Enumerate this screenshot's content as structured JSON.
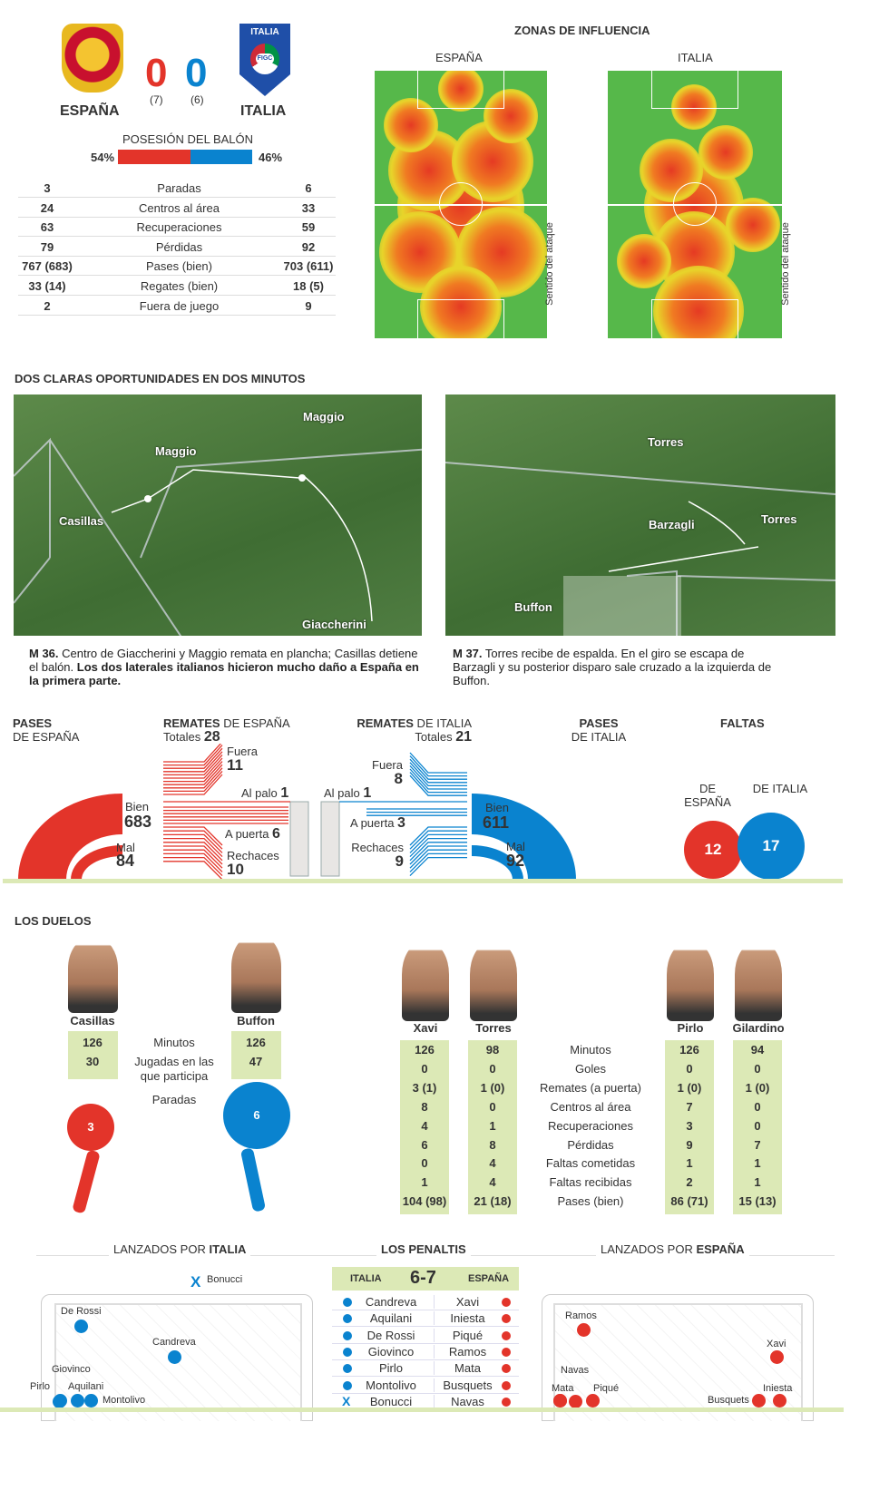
{
  "match": {
    "home": "ESPAÑA",
    "away": "ITALIA",
    "home_score": "0",
    "away_score": "0",
    "home_pen": "(7)",
    "away_pen": "(6)",
    "home_color": "#e3342a",
    "away_color": "#0a83cf",
    "italy_badge_text": "ITALIA",
    "italy_badge_figc": "FIGC"
  },
  "possession": {
    "title": "POSESIÓN DEL BALÓN",
    "home": "54%",
    "away": "46%",
    "home_value": 54,
    "away_value": 46
  },
  "stats": [
    [
      "3",
      "Paradas",
      "6"
    ],
    [
      "24",
      "Centros al área",
      "33"
    ],
    [
      "63",
      "Recuperaciones",
      "59"
    ],
    [
      "79",
      "Pérdidas",
      "92"
    ],
    [
      "767 (683)",
      "Pases (bien)",
      "703 (611)"
    ],
    [
      "33 (14)",
      "Regates (bien)",
      "18 (5)"
    ],
    [
      "2",
      "Fuera de juego",
      "9"
    ]
  ],
  "zones": {
    "title": "ZONAS DE INFLUENCIA",
    "home": "ESPAÑA",
    "away": "ITALIA",
    "direction": "Sentido del ataque"
  },
  "chances": {
    "title": "DOS CLARAS OPORTUNIDADES EN DOS MINUTOS",
    "photo1": {
      "labels": [
        "Maggio",
        "Maggio",
        "Casillas",
        "Giaccherini"
      ]
    },
    "photo2": {
      "labels": [
        "Torres",
        "Torres",
        "Barzagli",
        "Buffon"
      ]
    },
    "caption1": {
      "minute": "M 36.",
      "text": " Centro de Giaccherini y Maggio remata en plancha; Casillas detiene el balón. ",
      "bold": "Los dos laterales italianos hicieron mucho daño a España en la primera parte."
    },
    "caption2": {
      "minute": "M 37.",
      "text": " Torres recibe de espalda. En el giro se escapa de Barzagli y su posterior disparo sale cruzado a la izquierda de Buffon."
    }
  },
  "passes_home": {
    "title": "PASES",
    "sub": "DE ESPAÑA",
    "bien_label": "Bien",
    "bien": "683",
    "mal_label": "Mal",
    "mal": "84"
  },
  "passes_away": {
    "title": "PASES",
    "sub": "DE ITALIA",
    "bien_label": "Bien",
    "bien": "611",
    "mal_label": "Mal",
    "mal": "92"
  },
  "shots_home": {
    "title": "REMATES",
    "sub": " DE ESPAÑA",
    "totales_label": "Totales ",
    "totales": "28",
    "fuera_label": "Fuera",
    "fuera": "11",
    "palo_label": "Al palo ",
    "palo": "1",
    "puerta_label": "A puerta ",
    "puerta": "6",
    "rechaces_label": "Rechaces",
    "rechaces": "10"
  },
  "shots_away": {
    "title": "REMATES",
    "sub": " DE ITALIA",
    "totales_label": "Totales ",
    "totales": "21",
    "fuera_label": "Fuera",
    "fuera": "8",
    "palo_label": "Al palo ",
    "palo": "1",
    "puerta_label": "A puerta ",
    "puerta": "3",
    "rechaces_label": "Rechaces",
    "rechaces": "9"
  },
  "fouls": {
    "title": "FALTAS",
    "home_label": "DE ESPAÑA",
    "away_label": "DE ITALIA",
    "home": "12",
    "away": "17"
  },
  "duels": {
    "title": "LOS DUELOS",
    "keepers": {
      "labels": [
        "Minutos",
        "Jugadas en las que participa",
        "Paradas"
      ],
      "home": {
        "name": "Casillas",
        "values": [
          "126",
          "30"
        ],
        "saves": "3"
      },
      "away": {
        "name": "Buffon",
        "values": [
          "126",
          "47"
        ],
        "saves": "6"
      }
    },
    "labels": [
      "Minutos",
      "Goles",
      "Remates (a puerta)",
      "Centros al área",
      "Recuperaciones",
      "Pérdidas",
      "Faltas cometidas",
      "Faltas recibidas",
      "Pases (bien)"
    ],
    "players": [
      {
        "name": "Xavi",
        "values": [
          "126",
          "0",
          "3 (1)",
          "8",
          "4",
          "6",
          "0",
          "1",
          "104 (98)"
        ]
      },
      {
        "name": "Torres",
        "values": [
          "98",
          "0",
          "1 (0)",
          "0",
          "1",
          "8",
          "4",
          "4",
          "21 (18)"
        ]
      },
      {
        "name": "Pirlo",
        "values": [
          "126",
          "0",
          "1 (0)",
          "7",
          "3",
          "9",
          "1",
          "2",
          "86 (71)"
        ]
      },
      {
        "name": "Gilardino",
        "values": [
          "94",
          "0",
          "1 (0)",
          "0",
          "0",
          "7",
          "1",
          "1",
          "15 (13)"
        ]
      }
    ]
  },
  "penalties": {
    "title": "LOS PENALTIS",
    "left_title": "LANZADOS POR ",
    "left_team": "ITALIA",
    "right_title": "LANZADOS POR ",
    "right_team": "ESPAÑA",
    "head_left": "ITALIA",
    "score": "6-7",
    "head_right": "ESPAÑA",
    "rows": [
      [
        "Candreva",
        "Xavi"
      ],
      [
        "Aquilani",
        "Iniesta"
      ],
      [
        "De Rossi",
        "Piqué"
      ],
      [
        "Giovinco",
        "Ramos"
      ],
      [
        "Pirlo",
        "Mata"
      ],
      [
        "Montolivo",
        "Busquets"
      ],
      [
        "Bonucci",
        "Navas"
      ]
    ],
    "missed_mark": "X",
    "italy_shots": [
      "Bonucci",
      "De Rossi",
      "Candreva",
      "Giovinco",
      "Pirlo",
      "Aquilani",
      "Montolivo"
    ],
    "spain_shots": [
      "Ramos",
      "Xavi",
      "Navas",
      "Mata",
      "Piqué",
      "Busquets",
      "Iniesta"
    ]
  }
}
